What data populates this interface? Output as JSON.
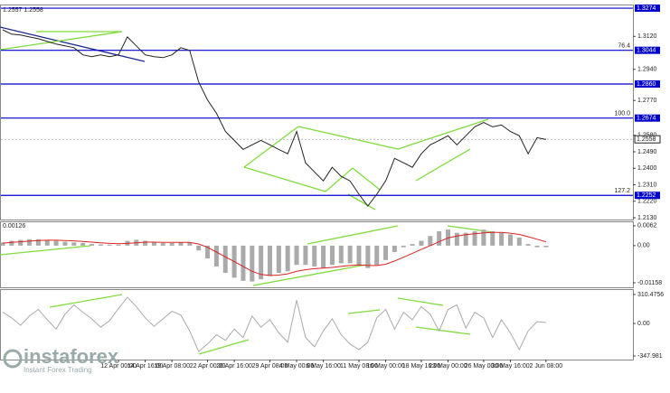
{
  "chart_data": [
    {
      "type": "line",
      "header": "1.2557 1.2558",
      "categories": [
        null,
        null,
        null,
        null,
        null,
        null,
        null,
        null,
        null,
        null,
        null,
        null,
        null,
        "12 Apr 00:00",
        null,
        null,
        "14 Apr 16:00",
        null,
        null,
        "19 Apr 08:00",
        null,
        null,
        null,
        "22 Apr 00:00",
        null,
        null,
        "26 Apr 16:00",
        null,
        null,
        null,
        "29 Apr 08:00",
        null,
        null,
        "4 May 00:00",
        null,
        null,
        "6 May 16:00",
        null,
        null,
        null,
        "11 May 08:00",
        null,
        null,
        "16 May 00:00",
        null,
        null,
        null,
        "18 May 16:00",
        null,
        null,
        "23 May 00:00",
        null,
        null,
        null,
        "26 May 00:00",
        null,
        null,
        "30 May 16:00",
        null,
        null,
        null,
        "2 Jun 08:00"
      ],
      "series": [
        {
          "color": "#222222",
          "values": [
            1.3156,
            1.3132,
            1.3127,
            1.3117,
            1.3107,
            1.3092,
            1.3078,
            1.3068,
            1.3058,
            1.3019,
            1.3009,
            1.3019,
            1.3009,
            1.3019,
            1.3117,
            1.3068,
            1.3019,
            1.3009,
            1.3004,
            1.3019,
            1.3058,
            1.3043,
            1.2871,
            1.2773,
            1.27,
            1.2601,
            1.2552,
            1.2503,
            1.2528,
            1.2552,
            1.2528,
            1.2503,
            1.2479,
            1.2601,
            1.243,
            1.238,
            1.2331,
            1.2405,
            1.2356,
            1.2331,
            1.2258,
            1.2194,
            1.2258,
            1.2331,
            1.2454,
            1.243,
            1.2405,
            1.2479,
            1.2528,
            1.2552,
            1.2577,
            1.2528,
            1.2577,
            1.2626,
            1.265,
            1.2626,
            1.2636,
            1.2601,
            1.2577,
            1.2479,
            1.2567,
            1.2557
          ]
        }
      ],
      "ylim": [
        1.212,
        1.3289
      ],
      "yticks": [
        {
          "value": 1.312,
          "label": "1.3120"
        },
        {
          "value": 1.294,
          "label": "1.2940"
        },
        {
          "value": 1.277,
          "label": "1.2770"
        },
        {
          "value": 1.258,
          "label": "1.2580"
        },
        {
          "value": 1.249,
          "label": "1.2490"
        },
        {
          "value": 1.24,
          "label": "1.2400"
        },
        {
          "value": 1.231,
          "label": "1.2310"
        },
        {
          "value": 1.222,
          "label": "1.2220"
        },
        {
          "value": 1.213,
          "label": "1.2130"
        }
      ],
      "levels": [
        {
          "value": 1.3274,
          "label": "1.3274"
        },
        {
          "value": 1.3044,
          "label": "1.3044",
          "fib": "76.4"
        },
        {
          "value": 1.286,
          "label": "1.2860"
        },
        {
          "value": 1.2674,
          "label": "1.2674",
          "fib": "100.0"
        },
        {
          "value": 1.2252,
          "label": "1.2252",
          "fib": "127.2"
        }
      ],
      "level_color": "#0000cc",
      "last_price": {
        "value": 1.2558,
        "label": "1.2558"
      }
    },
    {
      "type": "bar",
      "title": "0.00126",
      "color": "#aaaaaa",
      "values": [
        0.001,
        0.0015,
        0.0018,
        0.002,
        0.002,
        0.0018,
        0.0015,
        0.0012,
        0.001,
        0.0008,
        0.0005,
        0.0004,
        0.0003,
        0.0003,
        0.0015,
        0.0018,
        0.0015,
        0.001,
        0.0008,
        0.0008,
        0.001,
        0.001,
        -0.0015,
        -0.004,
        -0.0065,
        -0.0085,
        -0.01,
        -0.011,
        -0.0112,
        -0.0105,
        -0.0095,
        -0.0085,
        -0.008,
        -0.006,
        -0.006,
        -0.0065,
        -0.007,
        -0.006,
        -0.0055,
        -0.0055,
        -0.006,
        -0.007,
        -0.006,
        -0.0045,
        -0.002,
        -0.0005,
        0.0005,
        0.0015,
        0.003,
        0.0045,
        0.005,
        0.004,
        0.004,
        0.0045,
        0.005,
        0.0045,
        0.004,
        0.0035,
        0.0025,
        0.0005,
        -0.0005,
        -0.0005
      ],
      "line": {
        "color": "#dd2222",
        "values": [
          0.0008,
          0.001,
          0.0012,
          0.0014,
          0.0016,
          0.0017,
          0.0017,
          0.0016,
          0.0015,
          0.0013,
          0.0011,
          0.0009,
          0.0007,
          0.0006,
          0.0007,
          0.0009,
          0.0011,
          0.0011,
          0.001,
          0.001,
          0.001,
          0.001,
          0.0005,
          -0.0005,
          -0.002,
          -0.0035,
          -0.005,
          -0.0065,
          -0.008,
          -0.009,
          -0.0093,
          -0.0092,
          -0.0088,
          -0.008,
          -0.0075,
          -0.0072,
          -0.007,
          -0.0068,
          -0.0065,
          -0.0062,
          -0.006,
          -0.0062,
          -0.0062,
          -0.0058,
          -0.0048,
          -0.0036,
          -0.0024,
          -0.0012,
          0,
          0.0012,
          0.0024,
          0.003,
          0.0034,
          0.0037,
          0.004,
          0.0041,
          0.0041,
          0.0039,
          0.0035,
          0.0028,
          0.002,
          0.0012
        ]
      },
      "ylim": [
        -0.013,
        0.0073
      ],
      "yticks": [
        0.0062,
        {
          "value": 0,
          "label": "0.00"
        },
        -0.01158
      ]
    },
    {
      "type": "line",
      "series": [
        {
          "color": "#aaaaaa",
          "values": [
            120,
            60,
            -20,
            80,
            150,
            40,
            -60,
            100,
            200,
            120,
            50,
            -40,
            30,
            160,
            280,
            180,
            60,
            -30,
            50,
            130,
            90,
            -80,
            -300,
            -220,
            -120,
            -180,
            -60,
            -150,
            80,
            -40,
            40,
            -100,
            -200,
            250,
            -150,
            -250,
            -80,
            50,
            -120,
            -220,
            -280,
            -200,
            60,
            150,
            -60,
            120,
            40,
            180,
            100,
            -80,
            150,
            200,
            -50,
            120,
            60,
            -150,
            40,
            -100,
            -280,
            -80,
            20,
            10
          ]
        }
      ],
      "ylim": [
        -386,
        358
      ],
      "yticks": [
        310.4756,
        {
          "value": 0,
          "label": "0.00"
        },
        -347.981
      ]
    }
  ],
  "watermark": {
    "name": "instaforex",
    "tagline": "Instant Forex Trading"
  }
}
